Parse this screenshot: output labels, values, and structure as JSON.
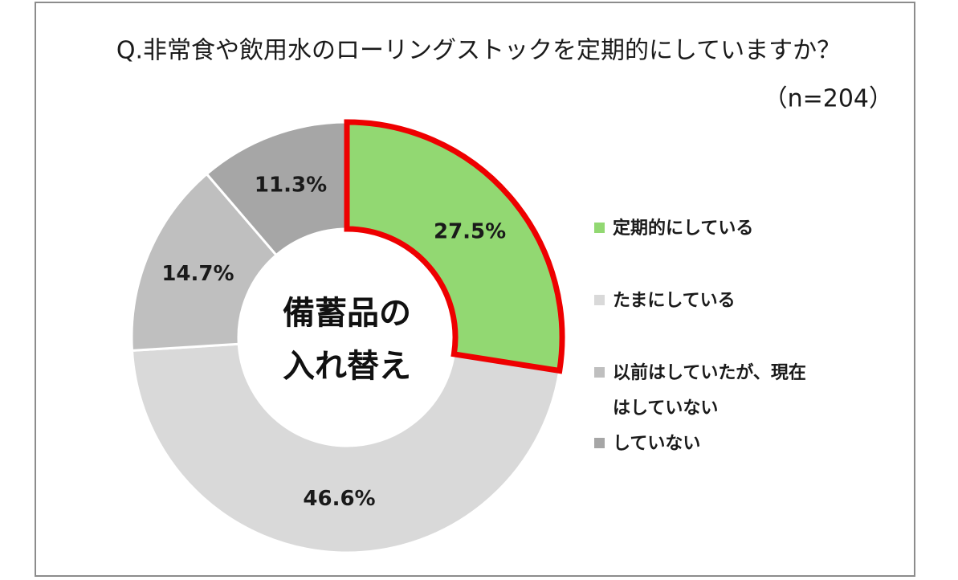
{
  "chart_data": {
    "type": "donut",
    "title": "Q.非常食や飲用水のローリングストックを定期的にしていますか？",
    "subtitle": "（n=204）",
    "center_label": [
      "備蓄品の",
      "入れ替え"
    ],
    "categories": [
      "定期的にしている",
      "たまにしている",
      "以前はしていたが、現在はしていない",
      "していない"
    ],
    "values": [
      27.5,
      46.6,
      14.7,
      11.3
    ],
    "value_labels": [
      "27.5%",
      "46.6%",
      "14.7%",
      "11.3%"
    ],
    "colors": [
      "#92d872",
      "#d9d9d9",
      "#bfbfbf",
      "#a6a6a6"
    ],
    "edgecolors": [
      "#ee0000",
      "#ffffff",
      "#ffffff",
      "#ffffff"
    ]
  }
}
